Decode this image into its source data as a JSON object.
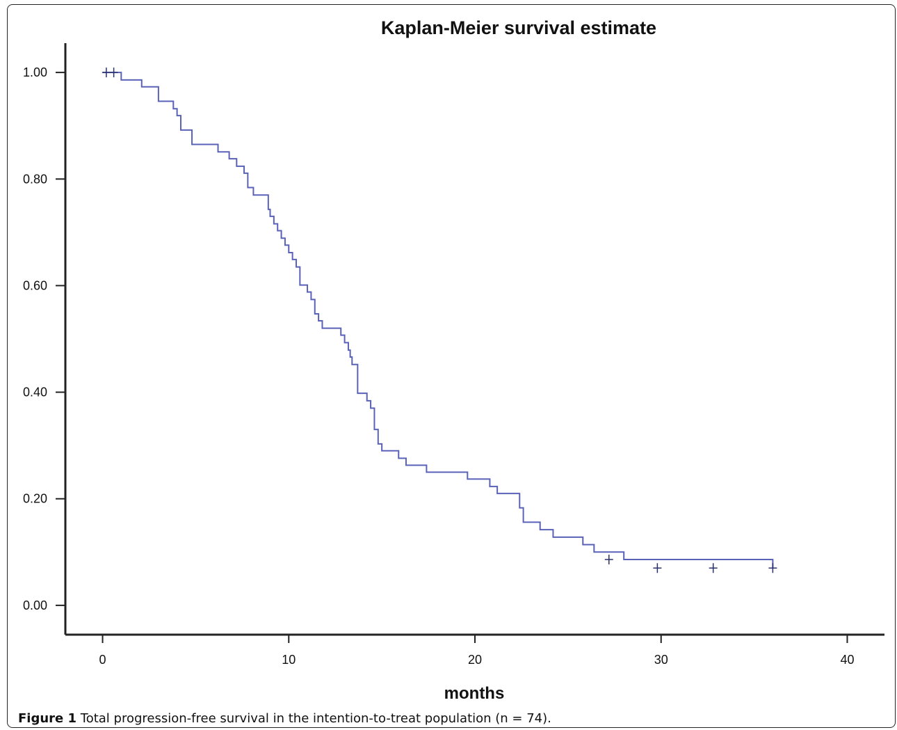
{
  "chart_data": {
    "type": "line",
    "title": "Kaplan-Meier survival estimate",
    "xlabel": "months",
    "ylabel": "",
    "xlim": [
      -2,
      42
    ],
    "ylim": [
      -0.055,
      1.055
    ],
    "xticks": [
      0,
      10,
      20,
      30,
      40
    ],
    "xtick_labels": [
      "0",
      "10",
      "20",
      "30",
      "40"
    ],
    "yticks": [
      0,
      0.2,
      0.4,
      0.6,
      0.8,
      1.0
    ],
    "ytick_labels": [
      "0.00",
      "0.20",
      "0.40",
      "0.60",
      "0.80",
      "1.00"
    ],
    "grid": false,
    "step": true,
    "series": [
      {
        "line_color": "#5a62b8",
        "x": [
          0,
          1.0,
          2.1,
          3.0,
          3.8,
          4.0,
          4.2,
          4.8,
          6.2,
          6.8,
          7.2,
          7.6,
          7.8,
          8.1,
          8.9,
          9.0,
          9.2,
          9.4,
          9.6,
          9.8,
          10.0,
          10.2,
          10.4,
          10.6,
          11.0,
          11.2,
          11.4,
          11.6,
          11.8,
          12.8,
          13.0,
          13.2,
          13.3,
          13.4,
          13.7,
          14.2,
          14.4,
          14.6,
          14.8,
          15.0,
          15.9,
          16.3,
          17.4,
          19.6,
          20.8,
          21.2,
          22.4,
          22.6,
          23.5,
          24.2,
          25.8,
          26.4,
          28.0,
          36.0
        ],
        "y": [
          1.0,
          0.986,
          0.973,
          0.946,
          0.932,
          0.919,
          0.892,
          0.865,
          0.851,
          0.838,
          0.824,
          0.811,
          0.784,
          0.77,
          0.743,
          0.73,
          0.716,
          0.703,
          0.689,
          0.676,
          0.662,
          0.649,
          0.635,
          0.601,
          0.588,
          0.574,
          0.547,
          0.534,
          0.52,
          0.507,
          0.493,
          0.479,
          0.466,
          0.452,
          0.398,
          0.384,
          0.37,
          0.33,
          0.303,
          0.29,
          0.276,
          0.263,
          0.25,
          0.237,
          0.223,
          0.21,
          0.183,
          0.156,
          0.142,
          0.128,
          0.114,
          0.1,
          0.086,
          0.07
        ],
        "censored": [
          {
            "x": 0.2,
            "y": 1.0
          },
          {
            "x": 0.6,
            "y": 1.0
          },
          {
            "x": 27.2,
            "y": 0.086
          },
          {
            "x": 29.8,
            "y": 0.07
          },
          {
            "x": 32.8,
            "y": 0.07
          },
          {
            "x": 36.0,
            "y": 0.07
          }
        ]
      }
    ]
  },
  "caption": {
    "label": "Figure 1",
    "text": " Total progression-free survival in the intention-to-treat population (n = 74)."
  }
}
